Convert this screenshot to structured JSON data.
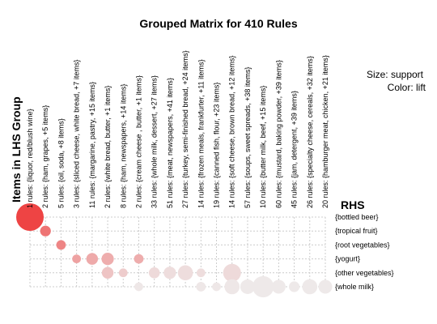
{
  "chart_data": {
    "type": "grouped-matrix",
    "title": "Grouped Matrix for 410 Rules",
    "legend": {
      "size": "Size: support",
      "color": "Color: lift"
    },
    "lhs_axis_label": "Items in LHS Group",
    "rhs_axis_label": "RHS",
    "lhs_groups": [
      "1 rules: {liquor, red/blush wine}",
      "2 rules: {ham, grapes, +5 items}",
      "5 rules: {oil, soda, +8 items}",
      "3 rules: {sliced cheese, white bread, +7 items}",
      "11 rules: {margarine, pastry, +15 items}",
      "2 rules: {white bread, butter, +1 items}",
      "8 rules: {ham, newspapers, +14 items}",
      "2 rules: {cream cheese , butter, +1 items}",
      "33 rules: {whole milk, dessert, +27 items}",
      "51 rules: {meat, newspapers, +41 items}",
      "27 rules: {turkey, semi-finished bread, +24 items}",
      "14 rules: {frozen meals, frankfurter, +11 items}",
      "19 rules: {canned fish, flour, +23 items}",
      "14 rules: {soft cheese, brown bread, +12 items}",
      "57 rules: {soups, sweet spreads, +38 items}",
      "10 rules: {butter milk, beef, +15 items}",
      "60 rules: {mustard, baking powder, +39 items}",
      "45 rules: {jam, detergent, +39 items}",
      "26 rules: {specialty cheese, cereals, +32 items}",
      "20 rules: {hamburger meat, chicken, +21 items}"
    ],
    "rhs_items": [
      "{bottled beer}",
      "{tropical fruit}",
      "{root vegetables}",
      "{yogurt}",
      "{other vegetables}",
      "{whole milk}"
    ],
    "points": [
      {
        "lhs": 0,
        "rhs": 0,
        "support": 1.0,
        "lift": 1.0
      },
      {
        "lhs": 1,
        "rhs": 1,
        "support": 0.15,
        "lift": 0.72
      },
      {
        "lhs": 2,
        "rhs": 2,
        "support": 0.12,
        "lift": 0.62
      },
      {
        "lhs": 3,
        "rhs": 3,
        "support": 0.1,
        "lift": 0.45
      },
      {
        "lhs": 4,
        "rhs": 3,
        "support": 0.18,
        "lift": 0.4
      },
      {
        "lhs": 5,
        "rhs": 3,
        "support": 0.2,
        "lift": 0.38
      },
      {
        "lhs": 7,
        "rhs": 3,
        "support": 0.12,
        "lift": 0.38
      },
      {
        "lhs": 5,
        "rhs": 4,
        "support": 0.18,
        "lift": 0.25
      },
      {
        "lhs": 6,
        "rhs": 4,
        "support": 0.1,
        "lift": 0.2
      },
      {
        "lhs": 8,
        "rhs": 4,
        "support": 0.16,
        "lift": 0.12
      },
      {
        "lhs": 9,
        "rhs": 4,
        "support": 0.2,
        "lift": 0.1
      },
      {
        "lhs": 10,
        "rhs": 4,
        "support": 0.3,
        "lift": 0.1
      },
      {
        "lhs": 11,
        "rhs": 4,
        "support": 0.1,
        "lift": 0.1
      },
      {
        "lhs": 13,
        "rhs": 4,
        "support": 0.42,
        "lift": 0.12
      },
      {
        "lhs": 7,
        "rhs": 5,
        "support": 0.1,
        "lift": 0.04
      },
      {
        "lhs": 11,
        "rhs": 5,
        "support": 0.12,
        "lift": 0.04
      },
      {
        "lhs": 12,
        "rhs": 5,
        "support": 0.1,
        "lift": 0.04
      },
      {
        "lhs": 13,
        "rhs": 5,
        "support": 0.3,
        "lift": 0.04
      },
      {
        "lhs": 14,
        "rhs": 5,
        "support": 0.28,
        "lift": 0.03
      },
      {
        "lhs": 15,
        "rhs": 5,
        "support": 0.6,
        "lift": 0.03
      },
      {
        "lhs": 16,
        "rhs": 5,
        "support": 0.25,
        "lift": 0.03
      },
      {
        "lhs": 17,
        "rhs": 5,
        "support": 0.15,
        "lift": 0.03
      },
      {
        "lhs": 18,
        "rhs": 5,
        "support": 0.3,
        "lift": 0.03
      },
      {
        "lhs": 19,
        "rhs": 5,
        "support": 0.25,
        "lift": 0.03
      }
    ],
    "colors": {
      "lift_high": "#ee4444",
      "lift_low": "#eeeeee",
      "grid": "#cccccc"
    },
    "grid": true
  }
}
